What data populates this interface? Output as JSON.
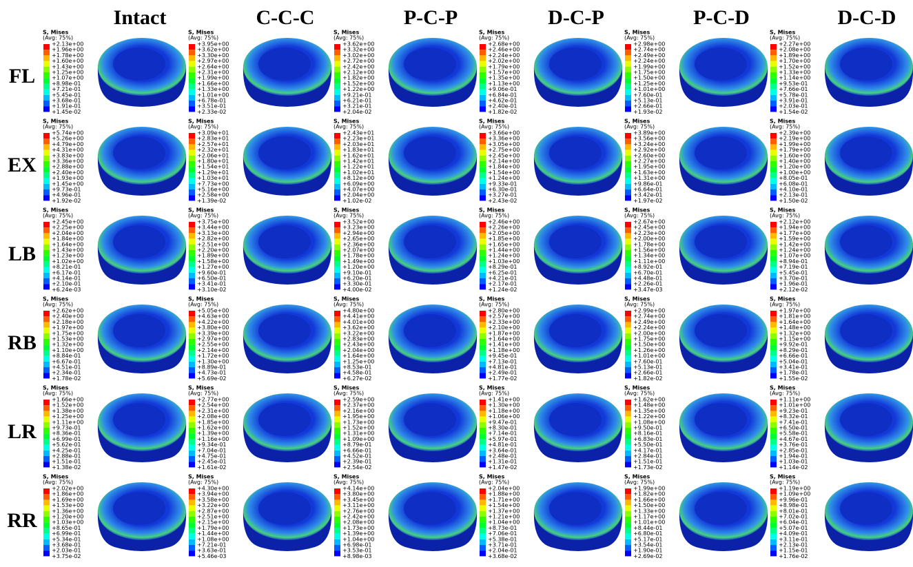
{
  "columns": [
    "Intact",
    "C-C-C",
    "P-C-P",
    "D-C-P",
    "P-C-D",
    "D-C-D"
  ],
  "rows": [
    {
      "label": "FL",
      "cells": [
        {
          "title": "S, Mises",
          "subtitle": "(Avg: 75%)",
          "values": [
            "+2.13e+00",
            "+1.96e+00",
            "+1.78e+00",
            "+1.60e+00",
            "+1.43e+00",
            "+1.25e+00",
            "+1.07e+00",
            "+8.98e-01",
            "+7.21e-01",
            "+5.45e-01",
            "+3.68e-01",
            "+1.91e-01",
            "+1.45e-02"
          ]
        },
        {
          "title": "S, Mises",
          "subtitle": "(Avg: 75%)",
          "values": [
            "+3.95e+00",
            "+3.62e+00",
            "+3.30e+00",
            "+2.97e+00",
            "+2.64e+00",
            "+2.31e+00",
            "+1.99e+00",
            "+1.66e+00",
            "+1.33e+00",
            "+1.01e+00",
            "+6.78e-01",
            "+3.51e-01",
            "+2.33e-02"
          ]
        },
        {
          "title": "S, Mises",
          "subtitle": "(Avg: 75%)",
          "values": [
            "+3.62e+00",
            "+3.32e+00",
            "+3.02e+00",
            "+2.72e+00",
            "+2.42e+00",
            "+2.12e+00",
            "+1.82e+00",
            "+1.52e+00",
            "+1.22e+00",
            "+9.21e-01",
            "+6.21e-01",
            "+3.21e-01",
            "+2.04e-02"
          ]
        },
        {
          "title": "S, Mises",
          "subtitle": "(Avg: 75%)",
          "values": [
            "+2.68e+00",
            "+2.46e+00",
            "+2.24e+00",
            "+2.02e+00",
            "+1.79e+00",
            "+1.57e+00",
            "+1.35e+00",
            "+1.13e+00",
            "+9.06e-01",
            "+6.84e-01",
            "+4.62e-01",
            "+2.40e-01",
            "+1.82e-02"
          ]
        },
        {
          "title": "S, Mises",
          "subtitle": "(Avg: 75%)",
          "values": [
            "+2.98e+00",
            "+2.74e+00",
            "+2.49e+00",
            "+2.24e+00",
            "+1.99e+00",
            "+1.75e+00",
            "+1.50e+00",
            "+1.25e+00",
            "+1.01e+00",
            "+7.60e-01",
            "+5.13e-01",
            "+2.66e-01",
            "+1.93e-02"
          ]
        },
        {
          "title": "S, Mises",
          "subtitle": "(Avg: 75%)",
          "values": [
            "+2.27e+00",
            "+2.08e+00",
            "+1.89e+00",
            "+1.70e+00",
            "+1.52e+00",
            "+1.33e+00",
            "+1.14e+00",
            "+9.53e-01",
            "+7.66e-01",
            "+5.78e-01",
            "+3.91e-01",
            "+2.03e-01",
            "+1.54e-02"
          ]
        }
      ]
    },
    {
      "label": "EX",
      "cells": [
        {
          "title": "S, Mises",
          "subtitle": "(Avg: 75%)",
          "values": [
            "+5.74e+00",
            "+5.26e+00",
            "+4.79e+00",
            "+4.31e+00",
            "+3.83e+00",
            "+3.36e+00",
            "+2.88e+00",
            "+2.40e+00",
            "+1.93e+00",
            "+1.45e+00",
            "+9.73e-01",
            "+4.96e-01",
            "+1.92e-02"
          ]
        },
        {
          "title": "S, Mises",
          "subtitle": "(Avg: 75%)",
          "values": [
            "+3.09e+01",
            "+2.83e+01",
            "+2.57e+01",
            "+2.32e+01",
            "+2.06e+01",
            "+1.80e+01",
            "+1.54e+01",
            "+1.29e+01",
            "+1.03e+01",
            "+7.73e+00",
            "+5.16e+00",
            "+2.58e+00",
            "+1.39e-02"
          ]
        },
        {
          "title": "S, Mises",
          "subtitle": "(Avg: 75%)",
          "values": [
            "+2.43e+01",
            "+2.23e+01",
            "+2.03e+01",
            "+1.83e+01",
            "+1.62e+01",
            "+1.42e+01",
            "+1.22e+01",
            "+1.02e+01",
            "+8.12e+00",
            "+6.09e+00",
            "+4.07e+00",
            "+2.04e+00",
            "+1.02e-02"
          ]
        },
        {
          "title": "S, Mises",
          "subtitle": "(Avg: 75%)",
          "values": [
            "+3.66e+00",
            "+3.36e+00",
            "+3.05e+00",
            "+2.75e+00",
            "+2.45e+00",
            "+2.14e+00",
            "+1.84e+00",
            "+1.54e+00",
            "+1.24e+00",
            "+9.33e-01",
            "+6.30e-01",
            "+3.27e-01",
            "+2.43e-02"
          ]
        },
        {
          "title": "S, Mises",
          "subtitle": "(Avg: 75%)",
          "values": [
            "+3.89e+00",
            "+3.56e+00",
            "+3.24e+00",
            "+2.92e+00",
            "+2.60e+00",
            "+2.27e+00",
            "+1.95e+00",
            "+1.63e+00",
            "+1.31e+00",
            "+9.86e-01",
            "+6.64e-01",
            "+3.42e-01",
            "+1.97e-02"
          ]
        },
        {
          "title": "S, Mises",
          "subtitle": "(Avg: 75%)",
          "values": [
            "+2.39e+00",
            "+2.19e+00",
            "+1.99e+00",
            "+1.79e+00",
            "+1.60e+00",
            "+1.40e+00",
            "+1.20e+00",
            "+1.00e+00",
            "+8.05e-01",
            "+6.08e-01",
            "+4.10e-01",
            "+2.13e-01",
            "+1.50e-02"
          ]
        }
      ]
    },
    {
      "label": "LB",
      "cells": [
        {
          "title": "S, Mises",
          "subtitle": "(Avg: 75%)",
          "values": [
            "+2.45e+00",
            "+2.25e+00",
            "+2.04e+00",
            "+1.84e+00",
            "+1.64e+00",
            "+1.43e+00",
            "+1.23e+00",
            "+1.02e+00",
            "+8.21e-01",
            "+6.17e-01",
            "+4.14e-01",
            "+2.10e-01",
            "+6.24e-03"
          ]
        },
        {
          "title": "S, Mises",
          "subtitle": "(Avg: 75%)",
          "values": [
            "+3.75e+00",
            "+3.44e+00",
            "+3.13e+00",
            "+2.82e+00",
            "+2.51e+00",
            "+2.20e+00",
            "+1.89e+00",
            "+1.58e+00",
            "+1.27e+00",
            "+9.60e-01",
            "+6.50e-01",
            "+3.41e-01",
            "+3.10e-02"
          ]
        },
        {
          "title": "S, Mises",
          "subtitle": "(Avg: 75%)",
          "values": [
            "+3.52e+00",
            "+3.23e+00",
            "+2.94e+00",
            "+2.65e+00",
            "+2.36e+00",
            "+2.07e+00",
            "+1.78e+00",
            "+1.49e+00",
            "+1.20e+00",
            "+9.10e-01",
            "+6.20e-01",
            "+3.30e-01",
            "+4.00e-02"
          ]
        },
        {
          "title": "S, Mises",
          "subtitle": "(Avg: 75%)",
          "values": [
            "+2.46e+00",
            "+2.26e+00",
            "+2.05e+00",
            "+1.85e+00",
            "+1.65e+00",
            "+1.44e+00",
            "+1.24e+00",
            "+1.03e+00",
            "+8.29e-01",
            "+6.25e-01",
            "+4.21e-01",
            "+2.17e-01",
            "+1.24e-02"
          ]
        },
        {
          "title": "S, Mises",
          "subtitle": "(Avg: 75%)",
          "values": [
            "+2.67e+00",
            "+2.45e+00",
            "+2.23e+00",
            "+2.00e+00",
            "+1.78e+00",
            "+1.56e+00",
            "+1.34e+00",
            "+1.11e+00",
            "+8.92e-01",
            "+6.70e-01",
            "+4.48e-01",
            "+2.26e-01",
            "+3.47e-03"
          ]
        },
        {
          "title": "S, Mises",
          "subtitle": "(Avg: 75%)",
          "values": [
            "+2.12e+00",
            "+1.94e+00",
            "+1.77e+00",
            "+1.59e+00",
            "+1.42e+00",
            "+1.24e+00",
            "+1.07e+00",
            "+8.94e-01",
            "+7.19e-01",
            "+5.45e-01",
            "+3.70e-01",
            "+1.96e-01",
            "+2.12e-02"
          ]
        }
      ]
    },
    {
      "label": "RB",
      "cells": [
        {
          "title": "S, Mises",
          "subtitle": "(Avg: 75%)",
          "values": [
            "+2.62e+00",
            "+2.40e+00",
            "+2.18e+00",
            "+1.97e+00",
            "+1.75e+00",
            "+1.53e+00",
            "+1.32e+00",
            "+1.10e+00",
            "+8.84e-01",
            "+6.67e-01",
            "+4.51e-01",
            "+2.34e-01",
            "+1.78e-02"
          ]
        },
        {
          "title": "S, Mises",
          "subtitle": "(Avg: 75%)",
          "values": [
            "+5.05e+00",
            "+4.63e+00",
            "+4.22e+00",
            "+3.80e+00",
            "+3.39e+00",
            "+2.97e+00",
            "+2.55e+00",
            "+2.14e+00",
            "+1.72e+00",
            "+1.30e+00",
            "+8.89e-01",
            "+4.73e-01",
            "+5.69e-02"
          ]
        },
        {
          "title": "S, Mises",
          "subtitle": "(Avg: 75%)",
          "values": [
            "+4.80e+00",
            "+4.41e+00",
            "+4.01e+00",
            "+3.62e+00",
            "+3.22e+00",
            "+2.83e+00",
            "+2.43e+00",
            "+2.04e+00",
            "+1.64e+00",
            "+1.25e+00",
            "+8.53e-01",
            "+4.58e-01",
            "+6.27e-02"
          ]
        },
        {
          "title": "S, Mises",
          "subtitle": "(Avg: 75%)",
          "values": [
            "+2.80e+00",
            "+2.57e+00",
            "+2.33e+00",
            "+2.10e+00",
            "+1.87e+00",
            "+1.64e+00",
            "+1.41e+00",
            "+1.18e+00",
            "+9.45e-01",
            "+7.13e-01",
            "+4.81e-01",
            "+2.49e-01",
            "+1.77e-02"
          ]
        },
        {
          "title": "S, Mises",
          "subtitle": "(Avg: 75%)",
          "values": [
            "+2.99e+00",
            "+2.74e+00",
            "+2.49e+00",
            "+2.24e+00",
            "+2.00e+00",
            "+1.75e+00",
            "+1.50e+00",
            "+1.26e+00",
            "+1.01e+00",
            "+7.60e-01",
            "+5.13e-01",
            "+2.66e-01",
            "+1.82e-02"
          ]
        },
        {
          "title": "S, Mises",
          "subtitle": "(Avg: 75%)",
          "values": [
            "+1.97e+00",
            "+1.81e+00",
            "+1.64e+00",
            "+1.48e+00",
            "+1.32e+00",
            "+1.15e+00",
            "+9.92e-01",
            "+8.29e-01",
            "+6.66e-01",
            "+5.04e-01",
            "+3.41e-01",
            "+1.78e-01",
            "+1.55e-02"
          ]
        }
      ]
    },
    {
      "label": "LR",
      "cells": [
        {
          "title": "S, Mises",
          "subtitle": "(Avg: 75%)",
          "values": [
            "+1.66e+00",
            "+1.52e+00",
            "+1.38e+00",
            "+1.25e+00",
            "+1.11e+00",
            "+9.73e-01",
            "+8.36e-01",
            "+6.99e-01",
            "+5.62e-01",
            "+4.25e-01",
            "+2.88e-01",
            "+1.51e-01",
            "+1.38e-02"
          ]
        },
        {
          "title": "S, Mises",
          "subtitle": "(Avg: 75%)",
          "values": [
            "+2.77e+00",
            "+2.54e+00",
            "+2.31e+00",
            "+2.08e+00",
            "+1.85e+00",
            "+1.62e+00",
            "+1.39e+00",
            "+1.16e+00",
            "+9.34e-01",
            "+7.04e-01",
            "+4.75e-01",
            "+2.45e-01",
            "+1.61e-02"
          ]
        },
        {
          "title": "S, Mises",
          "subtitle": "(Avg: 75%)",
          "values": [
            "+2.59e+00",
            "+2.37e+00",
            "+2.16e+00",
            "+1.95e+00",
            "+1.73e+00",
            "+1.52e+00",
            "+1.31e+00",
            "+1.09e+00",
            "+8.79e-01",
            "+6.66e-01",
            "+4.52e-01",
            "+2.39e-01",
            "+2.54e-02"
          ]
        },
        {
          "title": "S, Mises",
          "subtitle": "(Avg: 75%)",
          "values": [
            "+1.41e+00",
            "+1.30e+00",
            "+1.18e+00",
            "+1.06e+00",
            "+9.47e-01",
            "+8.30e-01",
            "+7.14e-01",
            "+5.97e-01",
            "+4.81e-01",
            "+3.64e-01",
            "+2.48e-01",
            "+1.31e-01",
            "+1.47e-02"
          ]
        },
        {
          "title": "S, Mises",
          "subtitle": "(Avg: 75%)",
          "values": [
            "+1.62e+00",
            "+1.48e+00",
            "+1.35e+00",
            "+1.22e+00",
            "+1.08e+00",
            "+9.50e-01",
            "+8.16e-01",
            "+6.83e-01",
            "+5.50e-01",
            "+4.17e-01",
            "+2.84e-01",
            "+1.51e-01",
            "+1.73e-02"
          ]
        },
        {
          "title": "S, Mises",
          "subtitle": "(Avg: 75%)",
          "values": [
            "+1.11e+00",
            "+1.01e+00",
            "+9.23e-01",
            "+8.32e-01",
            "+7.41e-01",
            "+6.50e-01",
            "+5.58e-01",
            "+4.67e-01",
            "+3.76e-01",
            "+2.85e-01",
            "+1.94e-01",
            "+1.03e-01",
            "+1.14e-02"
          ]
        }
      ]
    },
    {
      "label": "RR",
      "cells": [
        {
          "title": "S, Mises",
          "subtitle": "(Avg: 75%)",
          "values": [
            "+2.02e+00",
            "+1.86e+00",
            "+1.69e+00",
            "+1.53e+00",
            "+1.36e+00",
            "+1.20e+00",
            "+1.03e+00",
            "+8.65e-01",
            "+6.99e-01",
            "+5.34e-01",
            "+3.68e-01",
            "+2.03e-01",
            "+3.75e-02"
          ]
        },
        {
          "title": "S, Mises",
          "subtitle": "(Avg: 75%)",
          "values": [
            "+4.30e+00",
            "+3.94e+00",
            "+3.58e+00",
            "+3.22e+00",
            "+2.87e+00",
            "+2.51e+00",
            "+2.15e+00",
            "+1.79e+00",
            "+1.44e+00",
            "+1.08e+00",
            "+7.21e-01",
            "+3.63e-01",
            "+5.46e-03"
          ]
        },
        {
          "title": "S, Mises",
          "subtitle": "(Avg: 75%)",
          "values": [
            "+4.14e+00",
            "+3.80e+00",
            "+3.45e+00",
            "+3.11e+00",
            "+2.76e+00",
            "+2.42e+00",
            "+2.08e+00",
            "+1.73e+00",
            "+1.39e+00",
            "+1.04e+00",
            "+6.98e-01",
            "+3.53e-01",
            "+8.98e-03"
          ]
        },
        {
          "title": "S, Mises",
          "subtitle": "(Avg: 75%)",
          "values": [
            "+2.04e+00",
            "+1.88e+00",
            "+1.71e+00",
            "+1.54e+00",
            "+1.37e+00",
            "+1.21e+00",
            "+1.04e+00",
            "+8.73e-01",
            "+7.06e-01",
            "+5.38e-01",
            "+3.71e-01",
            "+2.04e-01",
            "+3.68e-02"
          ]
        },
        {
          "title": "S, Mises",
          "subtitle": "(Avg: 75%)",
          "values": [
            "+1.99e+00",
            "+1.82e+00",
            "+1.66e+00",
            "+1.50e+00",
            "+1.33e+00",
            "+1.17e+00",
            "+1.01e+00",
            "+8.44e-01",
            "+6.80e-01",
            "+5.17e-01",
            "+3.54e-01",
            "+1.90e-01",
            "+2.69e-02"
          ]
        },
        {
          "title": "S, Mises",
          "subtitle": "(Avg: 75%)",
          "values": [
            "+1.19e+00",
            "+1.09e+00",
            "+9.96e-01",
            "+8.98e-01",
            "+8.01e-01",
            "+7.02e-01",
            "+6.04e-01",
            "+5.07e-01",
            "+4.09e-01",
            "+3.11e-01",
            "+2.13e-01",
            "+1.15e-01",
            "+1.76e-02"
          ]
        }
      ]
    }
  ]
}
